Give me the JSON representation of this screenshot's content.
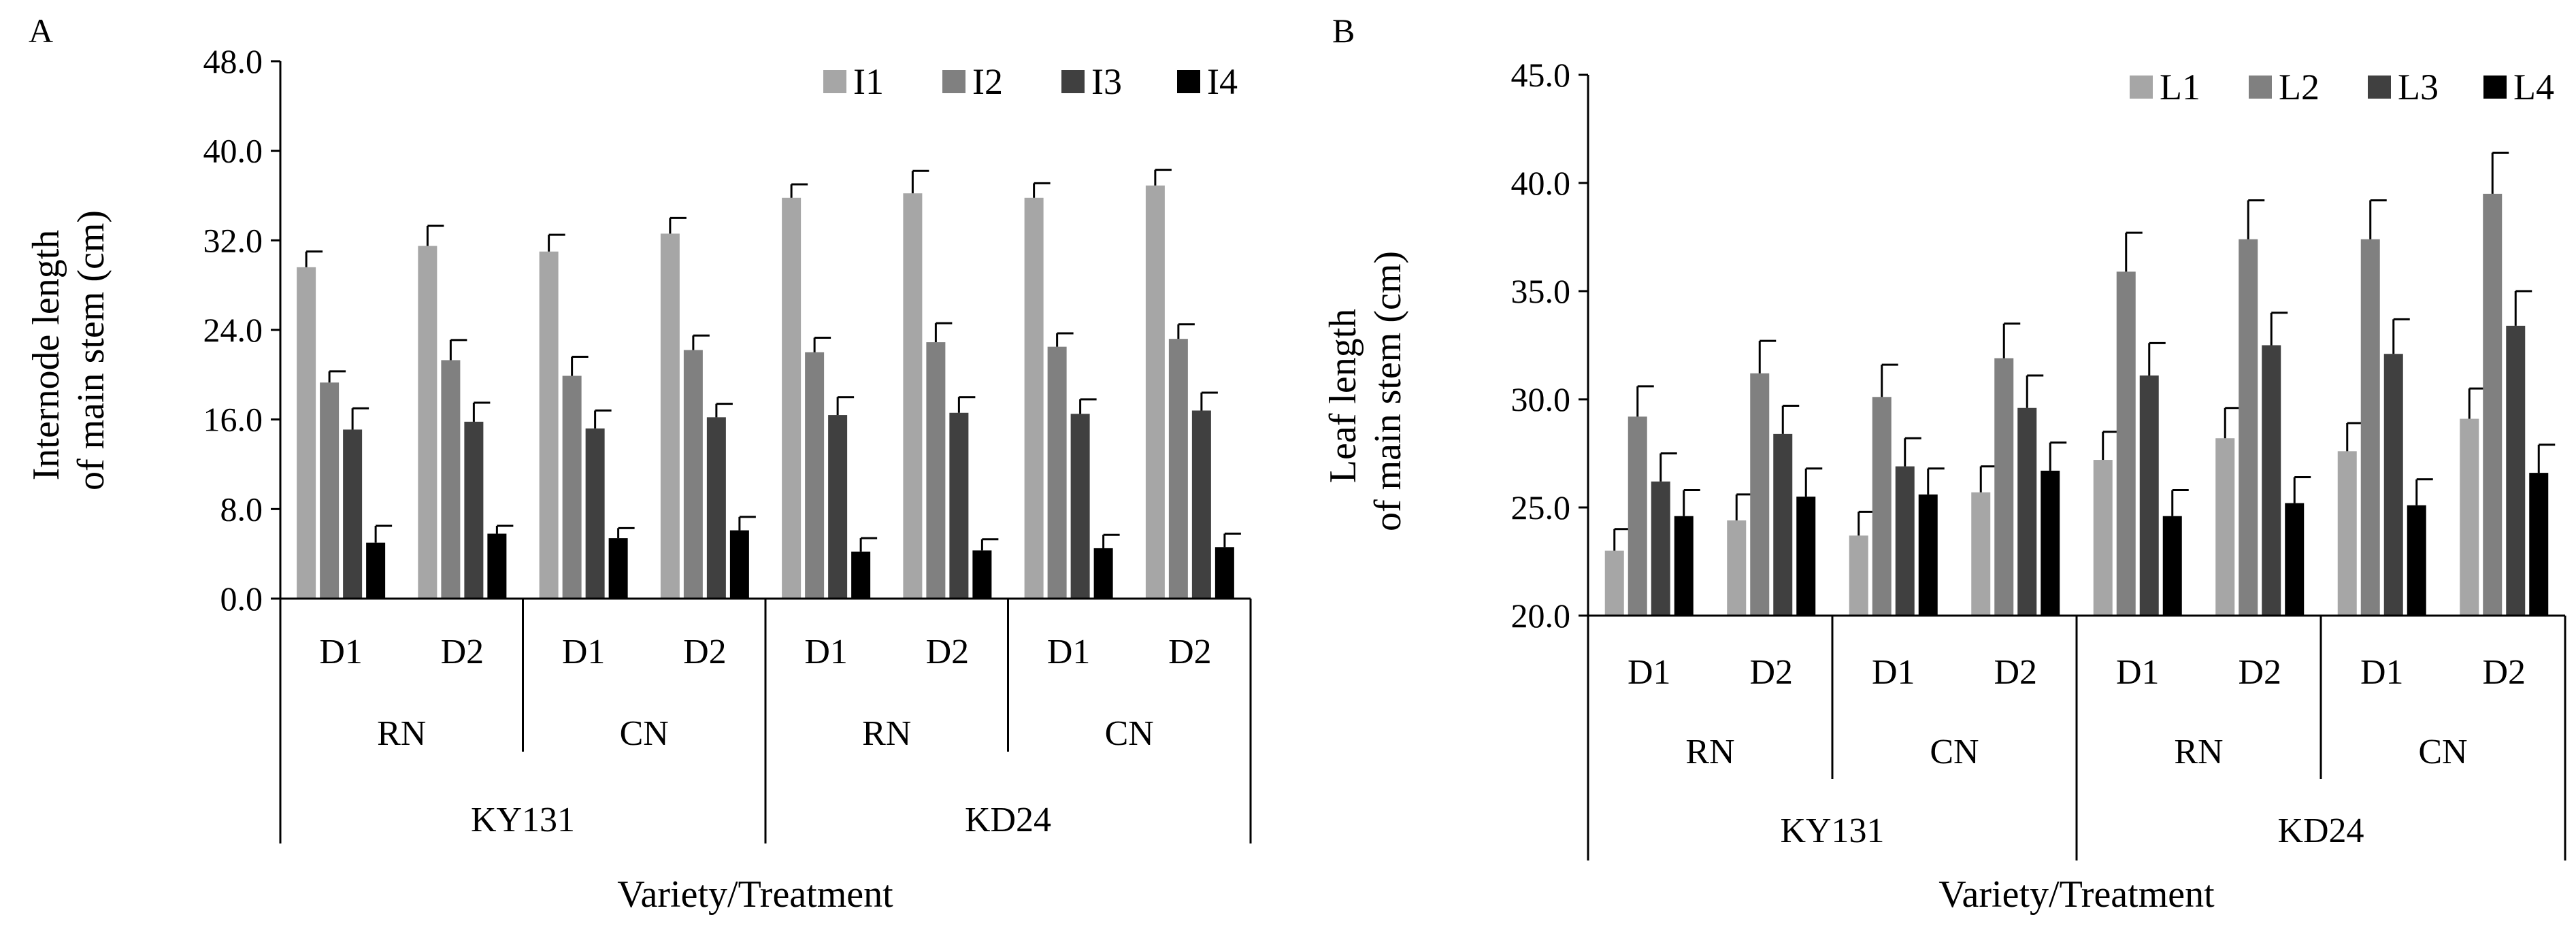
{
  "chart_data": [
    {
      "type": "bar",
      "panel_label": "A",
      "ylabel_line1": "Internode length",
      "ylabel_line2": "of main stem (cm)",
      "xlabel": "Variety/Treatment",
      "ylim": [
        0,
        48
      ],
      "yticks": [
        "0.0",
        "8.0",
        "16.0",
        "24.0",
        "32.0",
        "40.0",
        "48.0"
      ],
      "categories": [
        "D1",
        "D2",
        "D1",
        "D2",
        "D1",
        "D2",
        "D1",
        "D2"
      ],
      "treatments": [
        "RN",
        "CN",
        "RN",
        "CN"
      ],
      "varieties": [
        "KY131",
        "KD24"
      ],
      "legend_position": "top-right",
      "series": [
        {
          "name": "I1",
          "color": "#a6a6a6",
          "values": [
            29.6,
            31.5,
            31.0,
            32.6,
            35.8,
            36.2,
            35.8,
            36.9
          ],
          "errors": [
            1.4,
            1.8,
            1.5,
            1.4,
            1.2,
            2.0,
            1.3,
            1.4
          ]
        },
        {
          "name": "I2",
          "color": "#808080",
          "values": [
            19.3,
            21.3,
            19.9,
            22.2,
            22.0,
            22.9,
            22.5,
            23.2
          ],
          "errors": [
            1.0,
            1.8,
            1.7,
            1.3,
            1.3,
            1.7,
            1.2,
            1.3
          ]
        },
        {
          "name": "I3",
          "color": "#404040",
          "values": [
            15.1,
            15.8,
            15.2,
            16.2,
            16.4,
            16.6,
            16.5,
            16.8
          ],
          "errors": [
            1.9,
            1.7,
            1.6,
            1.2,
            1.6,
            1.4,
            1.3,
            1.6
          ]
        },
        {
          "name": "I4",
          "color": "#000000",
          "values": [
            5.0,
            5.8,
            5.4,
            6.1,
            4.2,
            4.3,
            4.5,
            4.6
          ],
          "errors": [
            1.5,
            0.7,
            0.9,
            1.2,
            1.2,
            1.0,
            1.2,
            1.2
          ]
        }
      ]
    },
    {
      "type": "bar",
      "panel_label": "B",
      "ylabel_line1": "Leaf length",
      "ylabel_line2": "of main stem (cm)",
      "xlabel": "Variety/Treatment",
      "ylim": [
        20,
        45
      ],
      "yticks": [
        "20.0",
        "25.0",
        "30.0",
        "35.0",
        "40.0",
        "45.0"
      ],
      "categories": [
        "D1",
        "D2",
        "D1",
        "D2",
        "D1",
        "D2",
        "D1",
        "D2"
      ],
      "treatments": [
        "RN",
        "CN",
        "RN",
        "CN"
      ],
      "varieties": [
        "KY131",
        "KD24"
      ],
      "legend_position": "top-right",
      "series": [
        {
          "name": "L1",
          "color": "#a6a6a6",
          "values": [
            23.0,
            24.4,
            23.7,
            25.7,
            27.2,
            28.2,
            27.6,
            29.1
          ],
          "errors": [
            1.0,
            1.2,
            1.1,
            1.2,
            1.3,
            1.4,
            1.3,
            1.4
          ]
        },
        {
          "name": "L2",
          "color": "#808080",
          "values": [
            29.2,
            31.2,
            30.1,
            31.9,
            35.9,
            37.4,
            37.4,
            39.5
          ],
          "errors": [
            1.4,
            1.5,
            1.5,
            1.6,
            1.8,
            1.8,
            1.8,
            1.9
          ]
        },
        {
          "name": "L3",
          "color": "#404040",
          "values": [
            26.2,
            28.4,
            26.9,
            29.6,
            31.1,
            32.5,
            32.1,
            33.4
          ],
          "errors": [
            1.3,
            1.3,
            1.3,
            1.5,
            1.5,
            1.5,
            1.6,
            1.6
          ]
        },
        {
          "name": "L4",
          "color": "#000000",
          "values": [
            24.6,
            25.5,
            25.6,
            26.7,
            24.6,
            25.2,
            25.1,
            26.6
          ],
          "errors": [
            1.2,
            1.3,
            1.2,
            1.3,
            1.2,
            1.2,
            1.2,
            1.3
          ]
        }
      ]
    }
  ]
}
